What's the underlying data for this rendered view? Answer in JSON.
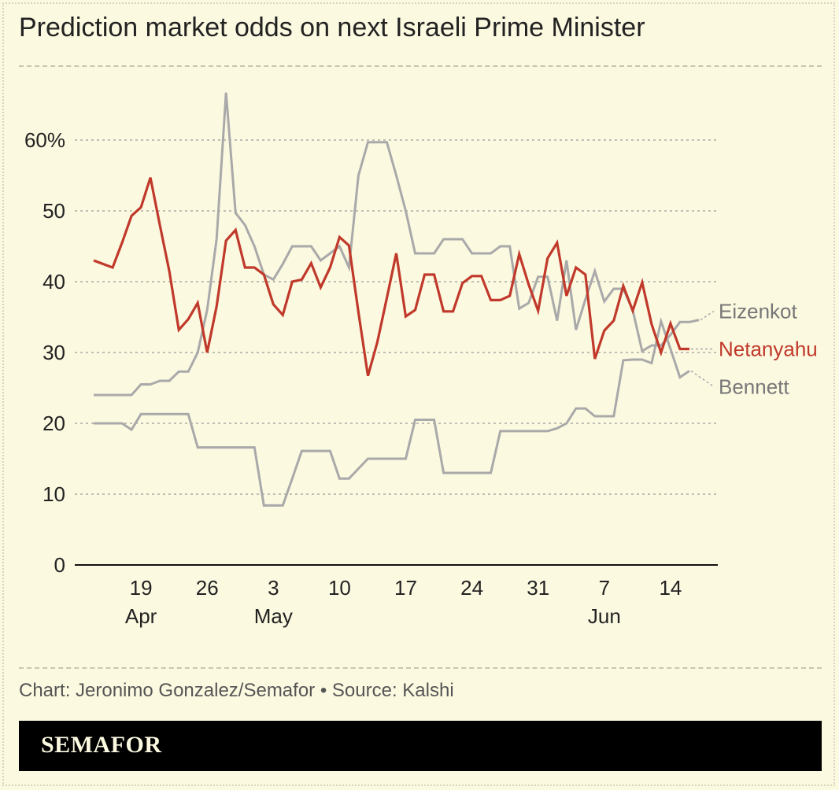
{
  "title": "Prediction market odds on next Israeli Prime Minister",
  "credit": "Chart: Jeronimo Gonzalez/Semafor • Source: Kalshi",
  "brand": "SEMAFOR",
  "colors": {
    "background": "#fcf9e1",
    "highlight": "#c0392b",
    "muted": "#a9a9a9",
    "text": "#222222"
  },
  "chart_data": {
    "type": "line",
    "title": "Prediction market odds on next Israeli Prime Minister",
    "xlabel": "",
    "ylabel": "",
    "ylim": [
      0,
      70
    ],
    "yticks": [
      {
        "value": 0,
        "label": "0"
      },
      {
        "value": 10,
        "label": "10"
      },
      {
        "value": 20,
        "label": "20"
      },
      {
        "value": 30,
        "label": "30"
      },
      {
        "value": 40,
        "label": "40"
      },
      {
        "value": 50,
        "label": "50"
      },
      {
        "value": 60,
        "label": "60%"
      }
    ],
    "xticks": [
      {
        "date": "2024-04-19",
        "label": "19",
        "month": "Apr"
      },
      {
        "date": "2024-04-26",
        "label": "26",
        "month": ""
      },
      {
        "date": "2024-05-03",
        "label": "3",
        "month": "May"
      },
      {
        "date": "2024-05-10",
        "label": "10",
        "month": ""
      },
      {
        "date": "2024-05-17",
        "label": "17",
        "month": ""
      },
      {
        "date": "2024-05-24",
        "label": "24",
        "month": ""
      },
      {
        "date": "2024-05-31",
        "label": "31",
        "month": ""
      },
      {
        "date": "2024-06-07",
        "label": "7",
        "month": "Jun"
      },
      {
        "date": "2024-06-14",
        "label": "14",
        "month": ""
      }
    ],
    "xrange": [
      "2024-04-12",
      "2024-06-19"
    ],
    "grid": true,
    "legend": "inline labels at line ends, right",
    "series": [
      {
        "name": "Eizenkot",
        "color": "#a9a9a9",
        "highlight": false,
        "points": [
          [
            "2024-04-14",
            24
          ],
          [
            "2024-04-15",
            24
          ],
          [
            "2024-04-16",
            24
          ],
          [
            "2024-04-17",
            24
          ],
          [
            "2024-04-18",
            24
          ],
          [
            "2024-04-19",
            25.5
          ],
          [
            "2024-04-20",
            25.5
          ],
          [
            "2024-04-21",
            26
          ],
          [
            "2024-04-22",
            26
          ],
          [
            "2024-04-23",
            27.3
          ],
          [
            "2024-04-24",
            27.3
          ],
          [
            "2024-04-25",
            30
          ],
          [
            "2024-04-26",
            36
          ],
          [
            "2024-04-27",
            46
          ],
          [
            "2024-04-28",
            66.7
          ],
          [
            "2024-04-29",
            49.7
          ],
          [
            "2024-04-30",
            48
          ],
          [
            "2024-05-01",
            45
          ],
          [
            "2024-05-02",
            41
          ],
          [
            "2024-05-03",
            40.3
          ],
          [
            "2024-05-04",
            42.5
          ],
          [
            "2024-05-05",
            45
          ],
          [
            "2024-05-06",
            45
          ],
          [
            "2024-05-07",
            45
          ],
          [
            "2024-05-08",
            43
          ],
          [
            "2024-05-09",
            44
          ],
          [
            "2024-05-10",
            45
          ],
          [
            "2024-05-11",
            42
          ],
          [
            "2024-05-12",
            55
          ],
          [
            "2024-05-13",
            59.7
          ],
          [
            "2024-05-14",
            59.7
          ],
          [
            "2024-05-15",
            59.7
          ],
          [
            "2024-05-16",
            55
          ],
          [
            "2024-05-17",
            50
          ],
          [
            "2024-05-18",
            44
          ],
          [
            "2024-05-19",
            44
          ],
          [
            "2024-05-20",
            44
          ],
          [
            "2024-05-21",
            46
          ],
          [
            "2024-05-22",
            46
          ],
          [
            "2024-05-23",
            46
          ],
          [
            "2024-05-24",
            44
          ],
          [
            "2024-05-25",
            44
          ],
          [
            "2024-05-26",
            44
          ],
          [
            "2024-05-27",
            45
          ],
          [
            "2024-05-28",
            45
          ],
          [
            "2024-05-29",
            36.2
          ],
          [
            "2024-05-30",
            37
          ],
          [
            "2024-05-31",
            40.7
          ],
          [
            "2024-06-01",
            40.7
          ],
          [
            "2024-06-02",
            34.5
          ],
          [
            "2024-06-03",
            43
          ],
          [
            "2024-06-04",
            33.2
          ],
          [
            "2024-06-05",
            37.5
          ],
          [
            "2024-06-06",
            41.5
          ],
          [
            "2024-06-07",
            37.2
          ],
          [
            "2024-06-08",
            39
          ],
          [
            "2024-06-09",
            39
          ],
          [
            "2024-06-10",
            36
          ],
          [
            "2024-06-11",
            30.2
          ],
          [
            "2024-06-12",
            31
          ],
          [
            "2024-06-13",
            31
          ],
          [
            "2024-06-14",
            32.5
          ],
          [
            "2024-06-15",
            34.3
          ],
          [
            "2024-06-16",
            34.3
          ],
          [
            "2024-06-17",
            34.6
          ]
        ]
      },
      {
        "name": "Netanyahu",
        "color": "#c0392b",
        "highlight": true,
        "points": [
          [
            "2024-04-14",
            43
          ],
          [
            "2024-04-15",
            42.5
          ],
          [
            "2024-04-16",
            42
          ],
          [
            "2024-04-17",
            45.5
          ],
          [
            "2024-04-18",
            49.3
          ],
          [
            "2024-04-19",
            50.5
          ],
          [
            "2024-04-20",
            54.7
          ],
          [
            "2024-04-21",
            48
          ],
          [
            "2024-04-22",
            41.5
          ],
          [
            "2024-04-23",
            33.2
          ],
          [
            "2024-04-24",
            34.7
          ],
          [
            "2024-04-25",
            37
          ],
          [
            "2024-04-26",
            30
          ],
          [
            "2024-04-27",
            36.5
          ],
          [
            "2024-04-28",
            45.8
          ],
          [
            "2024-04-29",
            47.3
          ],
          [
            "2024-04-30",
            42
          ],
          [
            "2024-05-01",
            42
          ],
          [
            "2024-05-02",
            41
          ],
          [
            "2024-05-03",
            36.8
          ],
          [
            "2024-05-04",
            35.3
          ],
          [
            "2024-05-05",
            40
          ],
          [
            "2024-05-06",
            40.3
          ],
          [
            "2024-05-07",
            42.6
          ],
          [
            "2024-05-08",
            39.2
          ],
          [
            "2024-05-09",
            42
          ],
          [
            "2024-05-10",
            46.3
          ],
          [
            "2024-05-11",
            45.1
          ],
          [
            "2024-05-12",
            35.7
          ],
          [
            "2024-05-13",
            26.7
          ],
          [
            "2024-05-14",
            31.5
          ],
          [
            "2024-05-15",
            37.7
          ],
          [
            "2024-05-16",
            44
          ],
          [
            "2024-05-17",
            35.1
          ],
          [
            "2024-05-18",
            36
          ],
          [
            "2024-05-19",
            41
          ],
          [
            "2024-05-20",
            41
          ],
          [
            "2024-05-21",
            35.8
          ],
          [
            "2024-05-22",
            35.8
          ],
          [
            "2024-05-23",
            39.8
          ],
          [
            "2024-05-24",
            40.8
          ],
          [
            "2024-05-25",
            40.8
          ],
          [
            "2024-05-26",
            37.4
          ],
          [
            "2024-05-27",
            37.4
          ],
          [
            "2024-05-28",
            38
          ],
          [
            "2024-05-29",
            43.9
          ],
          [
            "2024-05-30",
            39.6
          ],
          [
            "2024-05-31",
            35.9
          ],
          [
            "2024-06-01",
            43.3
          ],
          [
            "2024-06-02",
            45.5
          ],
          [
            "2024-06-03",
            38
          ],
          [
            "2024-06-04",
            42
          ],
          [
            "2024-06-05",
            41
          ],
          [
            "2024-06-06",
            29.1
          ],
          [
            "2024-06-07",
            33.1
          ],
          [
            "2024-06-08",
            34.5
          ],
          [
            "2024-06-09",
            39.4
          ],
          [
            "2024-06-10",
            35.9
          ],
          [
            "2024-06-11",
            39.9
          ],
          [
            "2024-06-12",
            34
          ],
          [
            "2024-06-13",
            30
          ],
          [
            "2024-06-14",
            34.1
          ],
          [
            "2024-06-15",
            30.5
          ],
          [
            "2024-06-16",
            30.5
          ]
        ]
      },
      {
        "name": "Bennett",
        "color": "#a9a9a9",
        "highlight": false,
        "points": [
          [
            "2024-04-14",
            20
          ],
          [
            "2024-04-15",
            20
          ],
          [
            "2024-04-16",
            20
          ],
          [
            "2024-04-17",
            20
          ],
          [
            "2024-04-18",
            19.1
          ],
          [
            "2024-04-19",
            21.3
          ],
          [
            "2024-04-20",
            21.3
          ],
          [
            "2024-04-21",
            21.3
          ],
          [
            "2024-04-22",
            21.3
          ],
          [
            "2024-04-23",
            21.3
          ],
          [
            "2024-04-24",
            21.3
          ],
          [
            "2024-04-25",
            16.6
          ],
          [
            "2024-04-26",
            16.6
          ],
          [
            "2024-04-27",
            16.6
          ],
          [
            "2024-04-28",
            16.6
          ],
          [
            "2024-04-29",
            16.6
          ],
          [
            "2024-04-30",
            16.6
          ],
          [
            "2024-05-01",
            16.6
          ],
          [
            "2024-05-02",
            8.4
          ],
          [
            "2024-05-03",
            8.4
          ],
          [
            "2024-05-04",
            8.4
          ],
          [
            "2024-05-05",
            12.2
          ],
          [
            "2024-05-06",
            16.1
          ],
          [
            "2024-05-07",
            16.1
          ],
          [
            "2024-05-08",
            16.1
          ],
          [
            "2024-05-09",
            16.1
          ],
          [
            "2024-05-10",
            12.2
          ],
          [
            "2024-05-11",
            12.2
          ],
          [
            "2024-05-12",
            13.6
          ],
          [
            "2024-05-13",
            15
          ],
          [
            "2024-05-14",
            15
          ],
          [
            "2024-05-15",
            15
          ],
          [
            "2024-05-16",
            15
          ],
          [
            "2024-05-17",
            15
          ],
          [
            "2024-05-18",
            20.5
          ],
          [
            "2024-05-19",
            20.5
          ],
          [
            "2024-05-20",
            20.5
          ],
          [
            "2024-05-21",
            13
          ],
          [
            "2024-05-22",
            13
          ],
          [
            "2024-05-23",
            13
          ],
          [
            "2024-05-24",
            13
          ],
          [
            "2024-05-25",
            13
          ],
          [
            "2024-05-26",
            13
          ],
          [
            "2024-05-27",
            18.9
          ],
          [
            "2024-05-28",
            18.9
          ],
          [
            "2024-05-29",
            18.9
          ],
          [
            "2024-05-30",
            18.9
          ],
          [
            "2024-05-31",
            18.9
          ],
          [
            "2024-06-01",
            18.9
          ],
          [
            "2024-06-02",
            19.3
          ],
          [
            "2024-06-03",
            20
          ],
          [
            "2024-06-04",
            22.1
          ],
          [
            "2024-06-05",
            22.1
          ],
          [
            "2024-06-06",
            21
          ],
          [
            "2024-06-07",
            21
          ],
          [
            "2024-06-08",
            21
          ],
          [
            "2024-06-09",
            28.9
          ],
          [
            "2024-06-10",
            29
          ],
          [
            "2024-06-11",
            29
          ],
          [
            "2024-06-12",
            28.5
          ],
          [
            "2024-06-13",
            34.4
          ],
          [
            "2024-06-14",
            30.5
          ],
          [
            "2024-06-15",
            26.5
          ],
          [
            "2024-06-16",
            27.4
          ]
        ]
      }
    ]
  }
}
